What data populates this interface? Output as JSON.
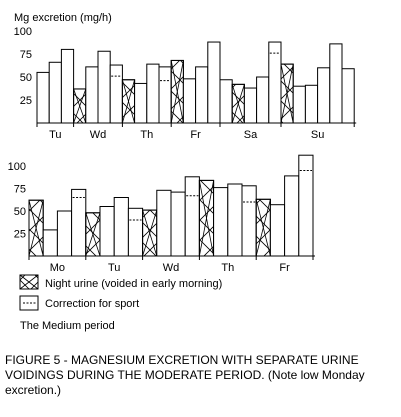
{
  "chart_data": [
    {
      "type": "bar",
      "ylabel": "Mg excretion (mg/h)",
      "ylim": [
        0,
        100
      ],
      "yticks": [
        100,
        75,
        50,
        25
      ],
      "day_labels": [
        "Tu",
        "Wd",
        "Th",
        "Fr",
        "Sa",
        "Su"
      ],
      "bars": [
        {
          "value": 55,
          "night": false
        },
        {
          "value": 66,
          "night": false
        },
        {
          "value": 80,
          "night": false
        },
        {
          "value": 37,
          "night": true
        },
        {
          "value": 61,
          "night": false
        },
        {
          "value": 78,
          "night": false
        },
        {
          "value": 63,
          "night": false,
          "corrected": 51
        },
        {
          "value": 47,
          "night": true
        },
        {
          "value": 43,
          "night": false
        },
        {
          "value": 64,
          "night": false
        },
        {
          "value": 61,
          "night": false,
          "corrected": 46
        },
        {
          "value": 68,
          "night": true
        },
        {
          "value": 48,
          "night": false
        },
        {
          "value": 61,
          "night": false
        },
        {
          "value": 88,
          "night": false
        },
        {
          "value": 47,
          "night": false
        },
        {
          "value": 42,
          "night": true
        },
        {
          "value": 38,
          "night": false
        },
        {
          "value": 50,
          "night": false
        },
        {
          "value": 88,
          "night": false,
          "corrected": 76
        },
        {
          "value": 64,
          "night": true
        },
        {
          "value": 40,
          "night": false
        },
        {
          "value": 41,
          "night": false
        },
        {
          "value": 60,
          "night": false
        },
        {
          "value": 86,
          "night": false
        },
        {
          "value": 59,
          "night": false
        }
      ]
    },
    {
      "type": "bar",
      "ylim": [
        0,
        100
      ],
      "yticks": [
        100,
        75,
        50,
        25
      ],
      "day_labels": [
        "Mo",
        "Tu",
        "Wd",
        "Th",
        "Fr"
      ],
      "bars": [
        {
          "value": 62,
          "night": true
        },
        {
          "value": 29,
          "night": false
        },
        {
          "value": 50,
          "night": false
        },
        {
          "value": 74,
          "night": false,
          "corrected": 65
        },
        {
          "value": 48,
          "night": true
        },
        {
          "value": 55,
          "night": false
        },
        {
          "value": 65,
          "night": false
        },
        {
          "value": 53,
          "night": false,
          "corrected": 40
        },
        {
          "value": 51,
          "night": true
        },
        {
          "value": 73,
          "night": false
        },
        {
          "value": 71,
          "night": false
        },
        {
          "value": 88,
          "night": false,
          "corrected": 67
        },
        {
          "value": 84,
          "night": true
        },
        {
          "value": 76,
          "night": false
        },
        {
          "value": 80,
          "night": false
        },
        {
          "value": 78,
          "night": false,
          "corrected": 60
        },
        {
          "value": 63,
          "night": true
        },
        {
          "value": 57,
          "night": false
        },
        {
          "value": 89,
          "night": false
        },
        {
          "value": 112,
          "night": false,
          "corrected": 95
        }
      ]
    }
  ],
  "legend": {
    "night_label": "Night urine (voided in early morning)",
    "correction_label": "Correction for sport",
    "period_label": "The Medium period"
  },
  "caption": {
    "line1": "FIGURE 5 - MAGNESIUM EXCRETION WITH SEPARATE URINE",
    "line2": "VOIDINGS DURING THE MODERATE PERIOD.  (Note low Monday",
    "line3": "excretion.)"
  }
}
